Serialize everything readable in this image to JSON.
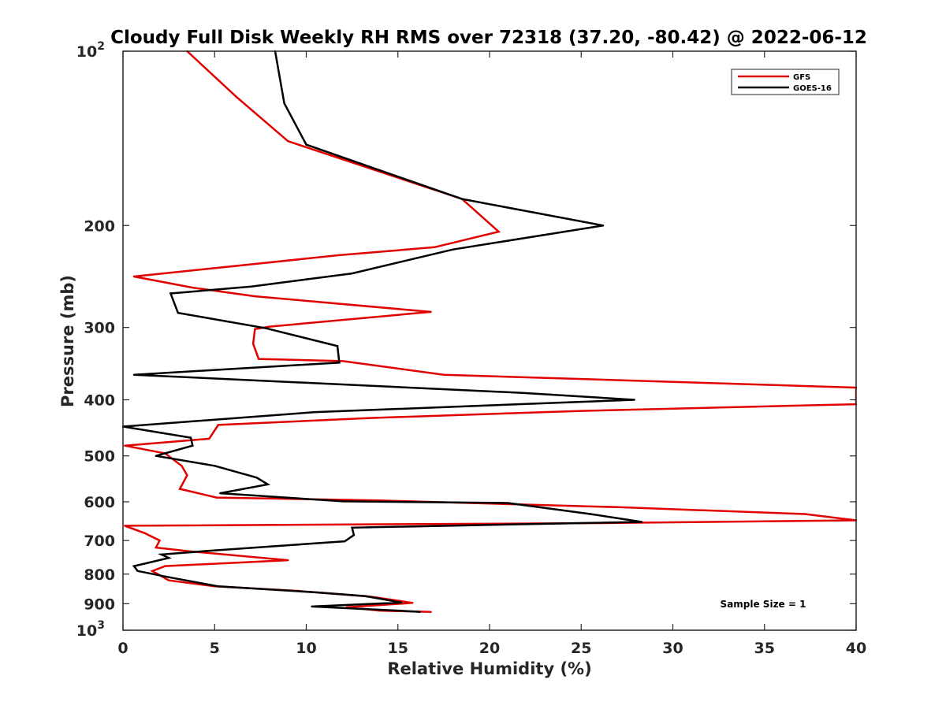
{
  "chart_data": {
    "type": "line",
    "title": "Cloudy Full Disk Weekly RH RMS over 72318 (37.20, -80.42) @ 2022-06-12",
    "xlabel": "Relative Humidity (%)",
    "ylabel": "Pressure (mb)",
    "xlim": [
      0,
      40
    ],
    "ylim": [
      100,
      1000
    ],
    "yscale": "log",
    "y_reversed": true,
    "grid": false,
    "legend_position": "top-right",
    "x_ticks": [
      {
        "value": 0,
        "label": "0"
      },
      {
        "value": 5,
        "label": "5"
      },
      {
        "value": 10,
        "label": "10"
      },
      {
        "value": 15,
        "label": "15"
      },
      {
        "value": 20,
        "label": "20"
      },
      {
        "value": 25,
        "label": "25"
      },
      {
        "value": 30,
        "label": "30"
      },
      {
        "value": 35,
        "label": "35"
      },
      {
        "value": 40,
        "label": "40"
      }
    ],
    "y_ticks": [
      {
        "value": 100,
        "base": "10",
        "exp": "2"
      },
      {
        "value": 200,
        "label": "200"
      },
      {
        "value": 300,
        "label": "300"
      },
      {
        "value": 400,
        "label": "400"
      },
      {
        "value": 500,
        "label": "500"
      },
      {
        "value": 600,
        "label": "600"
      },
      {
        "value": 700,
        "label": "700"
      },
      {
        "value": 800,
        "label": "800"
      },
      {
        "value": 900,
        "label": "900"
      },
      {
        "value": 1000,
        "base": "10",
        "exp": "3"
      }
    ],
    "annotation": "Sample Size = 1",
    "series": [
      {
        "name": "GFS",
        "color": "#e00000",
        "points": [
          [
            3.5,
            100
          ],
          [
            6.2,
            120
          ],
          [
            9.0,
            143
          ],
          [
            18.5,
            180
          ],
          [
            20.5,
            205
          ],
          [
            17.0,
            218
          ],
          [
            11.8,
            225
          ],
          [
            0.6,
            245
          ],
          [
            3.8,
            256
          ],
          [
            7.2,
            265
          ],
          [
            16.8,
            282
          ],
          [
            8.0,
            299
          ],
          [
            7.2,
            302
          ],
          [
            7.1,
            320
          ],
          [
            7.4,
            340
          ],
          [
            12.0,
            343
          ],
          [
            17.5,
            362
          ],
          [
            40,
            381
          ],
          [
            40,
            407
          ],
          [
            25.0,
            418
          ],
          [
            13.5,
            430
          ],
          [
            5.2,
            442
          ],
          [
            4.7,
            467
          ],
          [
            0.1,
            480
          ],
          [
            2.3,
            495
          ],
          [
            3.2,
            520
          ],
          [
            3.5,
            540
          ],
          [
            3.1,
            570
          ],
          [
            5.1,
            590
          ],
          [
            14.0,
            597
          ],
          [
            27.0,
            613
          ],
          [
            37.2,
            630
          ],
          [
            40,
            646
          ],
          [
            26.0,
            653
          ],
          [
            0.1,
            660
          ],
          [
            1.2,
            680
          ],
          [
            2.0,
            700
          ],
          [
            1.8,
            720
          ],
          [
            3.5,
            730
          ],
          [
            9.0,
            757
          ],
          [
            2.3,
            775
          ],
          [
            1.6,
            790
          ],
          [
            2.5,
            820
          ],
          [
            5.0,
            840
          ],
          [
            9.5,
            855
          ],
          [
            13.5,
            875
          ],
          [
            15.8,
            897
          ],
          [
            12.2,
            913
          ],
          [
            14.0,
            925
          ],
          [
            16.8,
            930
          ]
        ]
      },
      {
        "name": "GOES-16",
        "color": "#000000",
        "points": [
          [
            8.3,
            100
          ],
          [
            8.8,
            123
          ],
          [
            10.0,
            145
          ],
          [
            18.5,
            180
          ],
          [
            26.2,
            200
          ],
          [
            18.0,
            220
          ],
          [
            12.5,
            242
          ],
          [
            7.0,
            255
          ],
          [
            2.6,
            262
          ],
          [
            3.0,
            283
          ],
          [
            7.8,
            301
          ],
          [
            11.7,
            323
          ],
          [
            11.8,
            345
          ],
          [
            0.6,
            362
          ],
          [
            21.7,
            389
          ],
          [
            27.9,
            400
          ],
          [
            10.5,
            420
          ],
          [
            0.0,
            445
          ],
          [
            3.7,
            465
          ],
          [
            3.8,
            480
          ],
          [
            1.8,
            500
          ],
          [
            5.0,
            520
          ],
          [
            7.3,
            545
          ],
          [
            7.9,
            560
          ],
          [
            5.3,
            580
          ],
          [
            12.0,
            599
          ],
          [
            21.0,
            603
          ],
          [
            25.5,
            630
          ],
          [
            28.3,
            650
          ],
          [
            12.5,
            665
          ],
          [
            12.6,
            685
          ],
          [
            12.1,
            702
          ],
          [
            4.5,
            730
          ],
          [
            2.1,
            740
          ],
          [
            2.5,
            750
          ],
          [
            0.6,
            775
          ],
          [
            0.8,
            790
          ],
          [
            2.5,
            810
          ],
          [
            5.2,
            840
          ],
          [
            10.5,
            860
          ],
          [
            13.2,
            873
          ],
          [
            15.2,
            896
          ],
          [
            10.3,
            910
          ],
          [
            15.0,
            925
          ],
          [
            16.2,
            930
          ]
        ]
      }
    ]
  }
}
